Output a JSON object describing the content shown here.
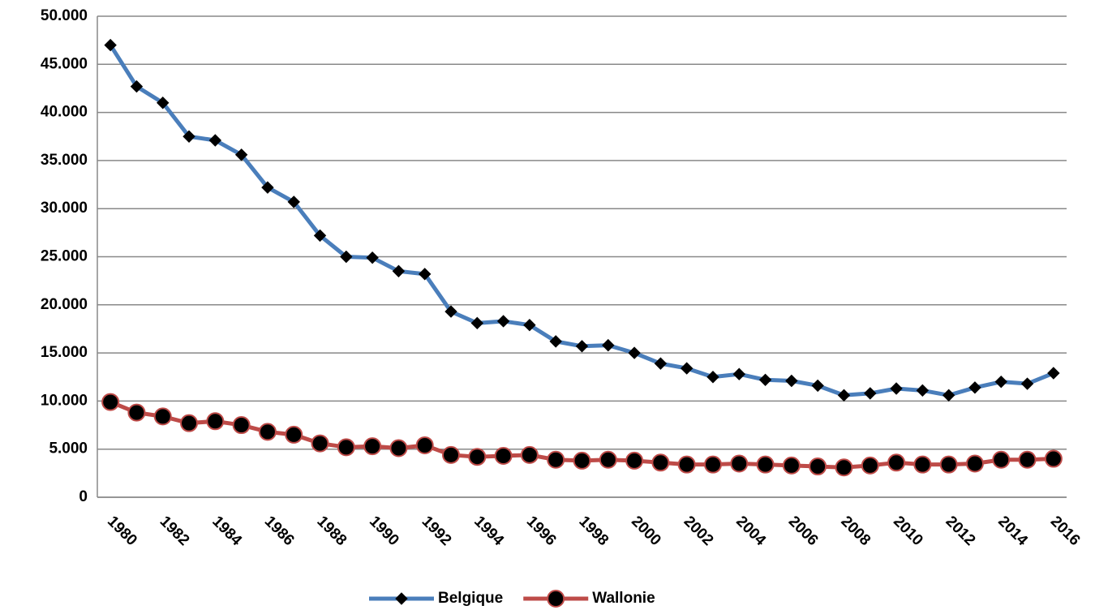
{
  "chart_data": {
    "type": "line",
    "categories": [
      "1980",
      null,
      "1982",
      null,
      "1984",
      null,
      "1986",
      null,
      "1988",
      null,
      "1990",
      null,
      "1992",
      null,
      "1994",
      null,
      "1996",
      null,
      "1998",
      null,
      "2000",
      null,
      "2002",
      null,
      "2004",
      null,
      "2006",
      null,
      "2008",
      null,
      "2010",
      null,
      "2012",
      null,
      "2014",
      null,
      "2016"
    ],
    "series": [
      {
        "name": "Belgique",
        "color": "#4a7ebb",
        "marker": "diamond",
        "values": [
          47000,
          42700,
          41000,
          37500,
          37100,
          35600,
          32200,
          30700,
          27200,
          25000,
          24900,
          23500,
          23200,
          19300,
          18100,
          18300,
          17900,
          16200,
          15700,
          15800,
          15000,
          13900,
          13400,
          12500,
          12800,
          12200,
          12100,
          11600,
          10600,
          10800,
          11300,
          11100,
          10600,
          11400,
          12000,
          11800,
          12900
        ]
      },
      {
        "name": "Wallonie",
        "color": "#be4b48",
        "marker": "circle",
        "values": [
          9900,
          8800,
          8400,
          7700,
          7900,
          7500,
          6800,
          6500,
          5600,
          5200,
          5300,
          5100,
          5400,
          4400,
          4200,
          4300,
          4400,
          3900,
          3800,
          3900,
          3800,
          3600,
          3400,
          3400,
          3500,
          3400,
          3300,
          3200,
          3100,
          3300,
          3600,
          3400,
          3400,
          3500,
          3900,
          3900,
          4000
        ]
      }
    ],
    "ylim": [
      0,
      50000
    ],
    "yticks": [
      0,
      {
        "value": 5000,
        "label": "5.000"
      },
      {
        "value": 10000,
        "label": "10.000"
      },
      {
        "value": 15000,
        "label": "15.000"
      },
      {
        "value": 20000,
        "label": "20.000"
      },
      {
        "value": 25000,
        "label": "25.000"
      },
      {
        "value": 30000,
        "label": "30.000"
      },
      {
        "value": 35000,
        "label": "35.000"
      },
      {
        "value": 40000,
        "label": "40.000"
      },
      {
        "value": 45000,
        "label": "45.000"
      },
      {
        "value": 50000,
        "label": "50.000"
      }
    ],
    "grid": true,
    "legend": "bottom"
  }
}
